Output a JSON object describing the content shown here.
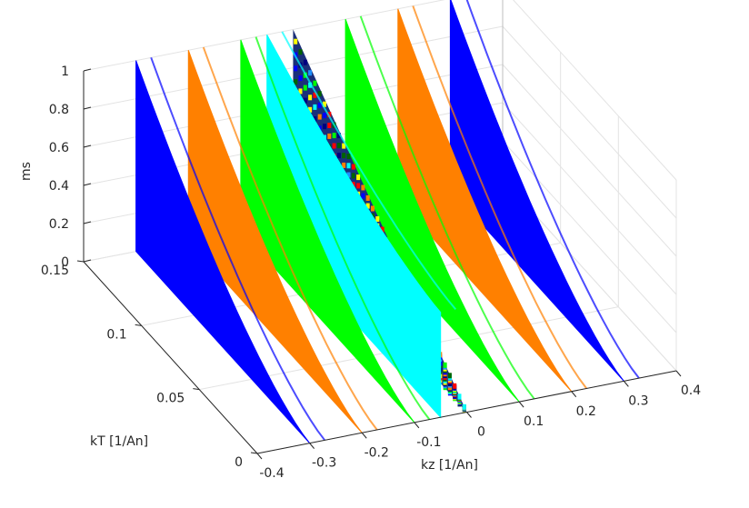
{
  "chart_data": {
    "type": "surface",
    "xlabel": "kz [1/An]",
    "ylabel": "kT [1/An]",
    "zlabel": "ms",
    "xlim": [
      -0.4,
      0.4
    ],
    "ylim": [
      0,
      0.15
    ],
    "zlim": [
      0,
      1
    ],
    "x_ticks": [
      "-0.4",
      "-0.3",
      "-0.2",
      "-0.1",
      "0",
      "0.1",
      "0.2",
      "0.3",
      "0.4"
    ],
    "y_ticks": [
      "0",
      "0.05",
      "0.1",
      "0.15"
    ],
    "z_ticks": [
      "0",
      "0.2",
      "0.4",
      "0.6",
      "0.8",
      "1"
    ],
    "grid": true,
    "series": [
      {
        "kz": -0.3,
        "color": "#0000ff",
        "ms_at_kT_0": 0.0,
        "ms_at_kT_max": 1.0
      },
      {
        "kz": -0.2,
        "color": "#ff8000",
        "ms_at_kT_0": 0.0,
        "ms_at_kT_max": 1.0
      },
      {
        "kz": -0.1,
        "color": "#00ff00",
        "ms_at_kT_0": 0.0,
        "ms_at_kT_max": 1.0
      },
      {
        "kz": -0.05,
        "color": "#00ffff",
        "ms_at_kT_0": 0.55,
        "ms_at_kT_max": 1.0
      },
      {
        "kz": 0.0,
        "color": "mixed",
        "ms_at_kT_0": 0.0,
        "ms_at_kT_max": 1.0
      },
      {
        "kz": 0.1,
        "color": "#00ff00",
        "ms_at_kT_0": 0.0,
        "ms_at_kT_max": 1.0
      },
      {
        "kz": 0.2,
        "color": "#ff8000",
        "ms_at_kT_0": 0.0,
        "ms_at_kT_max": 1.0
      },
      {
        "kz": 0.3,
        "color": "#0000ff",
        "ms_at_kT_0": 0.0,
        "ms_at_kT_max": 1.0
      }
    ]
  }
}
